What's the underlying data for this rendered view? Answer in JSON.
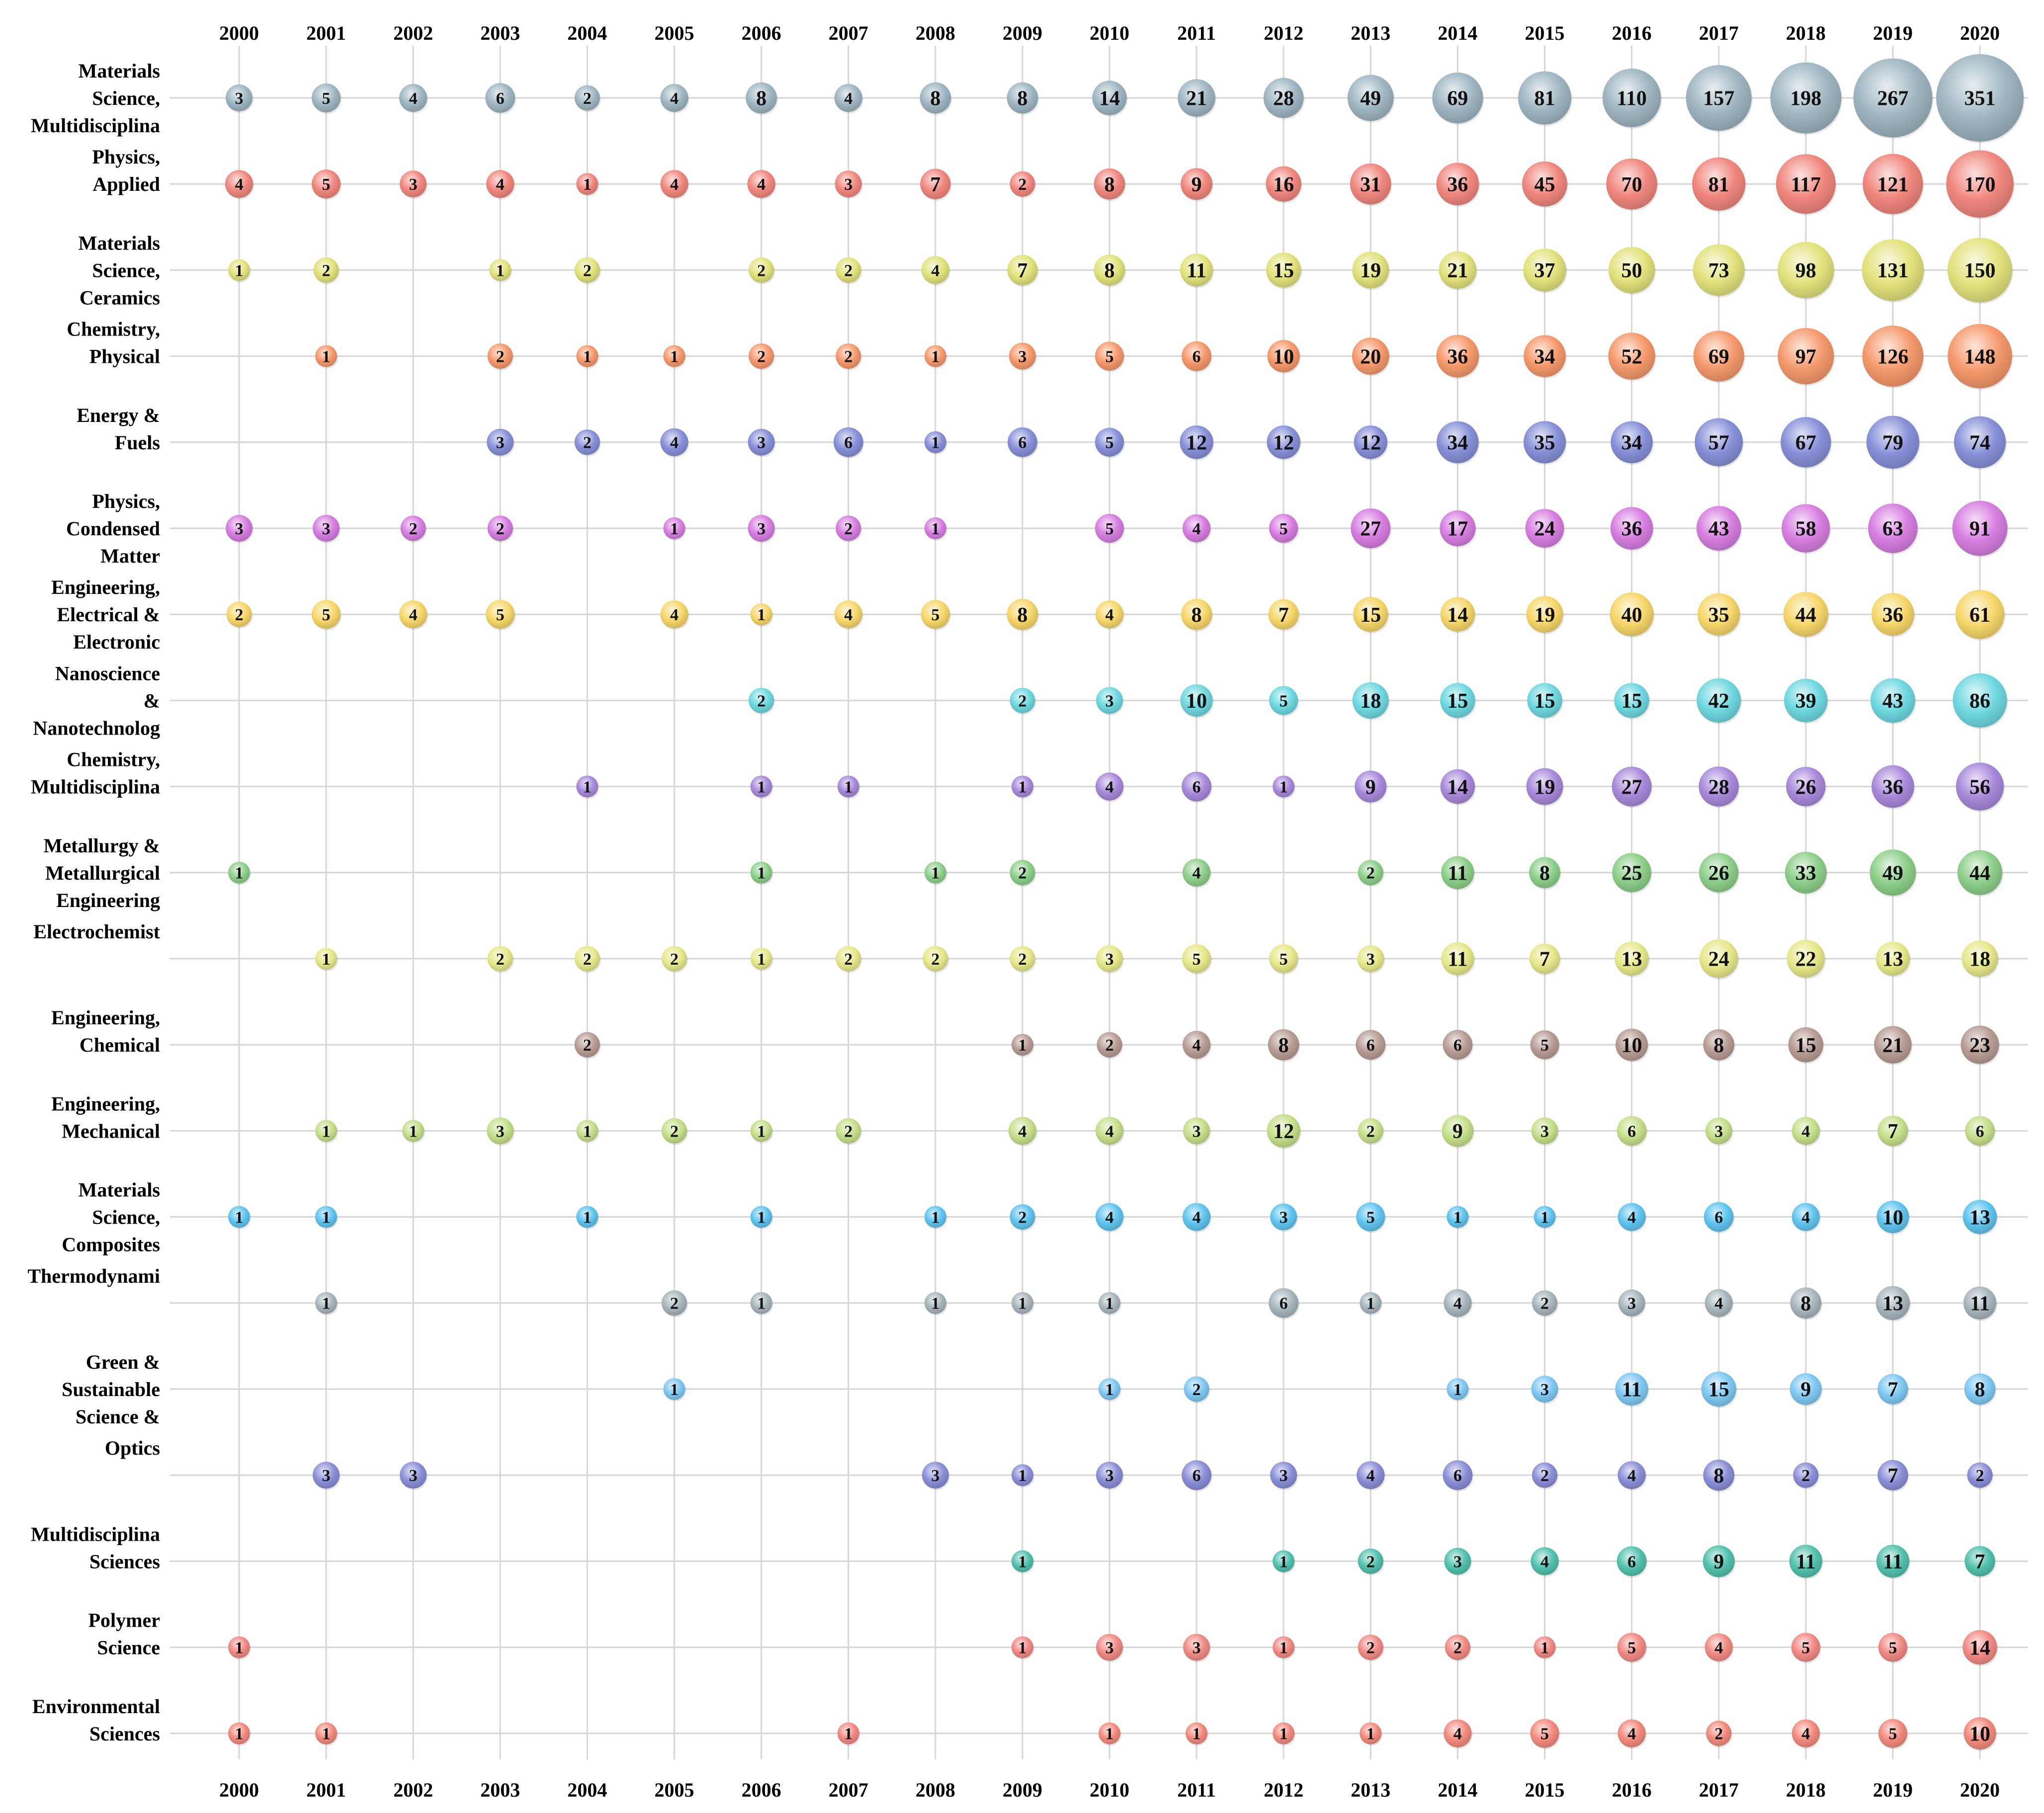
{
  "chart_data": {
    "type": "bubble-matrix",
    "years": [
      "2000",
      "2001",
      "2002",
      "2003",
      "2004",
      "2005",
      "2006",
      "2007",
      "2008",
      "2009",
      "2010",
      "2011",
      "2012",
      "2013",
      "2014",
      "2015",
      "2016",
      "2017",
      "2018",
      "2019",
      "2020"
    ],
    "rows": [
      {
        "label": [
          "Materials",
          "Science,",
          "Multidisciplina"
        ],
        "color": "#9fb6c2",
        "values": [
          3,
          5,
          4,
          6,
          2,
          4,
          8,
          4,
          8,
          8,
          14,
          21,
          28,
          49,
          69,
          81,
          110,
          157,
          198,
          267,
          351
        ]
      },
      {
        "label": [
          "Physics,",
          "Applied"
        ],
        "color": "#f0877e",
        "values": [
          4,
          5,
          3,
          4,
          1,
          4,
          4,
          3,
          7,
          2,
          8,
          9,
          16,
          31,
          36,
          45,
          70,
          81,
          117,
          121,
          170
        ]
      },
      {
        "label": [
          "Materials",
          "Science,",
          "Ceramics"
        ],
        "color": "#e2e27c",
        "values": [
          1,
          2,
          null,
          1,
          2,
          null,
          2,
          2,
          4,
          7,
          8,
          11,
          15,
          19,
          21,
          37,
          50,
          73,
          98,
          131,
          150
        ]
      },
      {
        "label": [
          "Chemistry,",
          "Physical"
        ],
        "color": "#f5996c",
        "values": [
          null,
          1,
          null,
          2,
          1,
          1,
          2,
          2,
          1,
          3,
          5,
          6,
          10,
          20,
          36,
          34,
          52,
          69,
          97,
          126,
          148
        ]
      },
      {
        "label": [
          "Energy &",
          "Fuels"
        ],
        "color": "#8790d8",
        "values": [
          null,
          null,
          null,
          3,
          2,
          4,
          3,
          6,
          1,
          6,
          5,
          12,
          12,
          12,
          34,
          35,
          34,
          57,
          67,
          79,
          74
        ]
      },
      {
        "label": [
          "Physics,",
          "Condensed",
          "Matter"
        ],
        "color": "#d67ee0",
        "values": [
          3,
          3,
          2,
          2,
          null,
          1,
          3,
          2,
          1,
          null,
          5,
          4,
          5,
          27,
          17,
          24,
          36,
          43,
          58,
          63,
          91
        ]
      },
      {
        "label": [
          "Engineering,",
          "Electrical &",
          "Electronic"
        ],
        "color": "#f6d76a",
        "values": [
          2,
          5,
          4,
          5,
          null,
          4,
          1,
          4,
          5,
          8,
          4,
          8,
          7,
          15,
          14,
          19,
          40,
          35,
          44,
          36,
          61
        ]
      },
      {
        "label": [
          "Nanoscience",
          "&",
          "Nanotechnolog"
        ],
        "color": "#6fd8e0",
        "values": [
          null,
          null,
          null,
          null,
          null,
          null,
          2,
          null,
          null,
          2,
          3,
          10,
          5,
          18,
          15,
          15,
          15,
          42,
          39,
          43,
          86
        ]
      },
      {
        "label": [
          "Chemistry,",
          "Multidisciplina"
        ],
        "color": "#a889da",
        "values": [
          null,
          null,
          null,
          null,
          1,
          null,
          1,
          1,
          null,
          1,
          4,
          6,
          1,
          9,
          14,
          19,
          27,
          28,
          26,
          36,
          56
        ]
      },
      {
        "label": [
          "Metallurgy &",
          "Metallurgical",
          "Engineering"
        ],
        "color": "#8dcf8a",
        "values": [
          1,
          null,
          null,
          null,
          null,
          null,
          1,
          null,
          1,
          2,
          null,
          4,
          null,
          2,
          11,
          8,
          25,
          26,
          33,
          49,
          44
        ]
      },
      {
        "label": [
          "Electrochemist"
        ],
        "color": "#e6e88a",
        "values": [
          null,
          1,
          null,
          2,
          2,
          2,
          1,
          2,
          2,
          2,
          3,
          5,
          5,
          3,
          11,
          7,
          13,
          24,
          22,
          13,
          18
        ]
      },
      {
        "label": [
          "Engineering,",
          "Chemical"
        ],
        "color": "#b79c94",
        "values": [
          null,
          null,
          null,
          null,
          2,
          null,
          null,
          null,
          null,
          1,
          2,
          4,
          8,
          6,
          6,
          5,
          10,
          8,
          15,
          21,
          23
        ]
      },
      {
        "label": [
          "Engineering,",
          "Mechanical"
        ],
        "color": "#c5df8a",
        "values": [
          null,
          1,
          1,
          3,
          1,
          2,
          1,
          2,
          null,
          4,
          4,
          3,
          12,
          2,
          9,
          3,
          6,
          3,
          4,
          7,
          6
        ]
      },
      {
        "label": [
          "Materials",
          "Science,",
          "Composites"
        ],
        "color": "#5fc4ee",
        "values": [
          1,
          1,
          null,
          null,
          1,
          null,
          1,
          null,
          1,
          2,
          4,
          4,
          3,
          5,
          1,
          1,
          4,
          6,
          4,
          10,
          13
        ]
      },
      {
        "label": [
          "Thermodynami"
        ],
        "color": "#a7b5bc",
        "values": [
          null,
          1,
          null,
          null,
          null,
          2,
          1,
          null,
          1,
          1,
          1,
          null,
          6,
          1,
          4,
          2,
          3,
          4,
          8,
          13,
          11
        ]
      },
      {
        "label": [
          "Green &",
          "Sustainable",
          "Science &"
        ],
        "color": "#7fc8f2",
        "values": [
          null,
          null,
          null,
          null,
          null,
          1,
          null,
          null,
          null,
          null,
          1,
          2,
          null,
          null,
          1,
          3,
          11,
          15,
          9,
          7,
          8
        ]
      },
      {
        "label": [
          "Optics"
        ],
        "color": "#8a8ed6",
        "values": [
          null,
          3,
          3,
          null,
          null,
          null,
          null,
          null,
          3,
          1,
          3,
          6,
          3,
          4,
          6,
          2,
          4,
          8,
          2,
          7,
          2
        ]
      },
      {
        "label": [
          "Multidisciplina",
          "Sciences"
        ],
        "color": "#52c1ad",
        "values": [
          null,
          null,
          null,
          null,
          null,
          null,
          null,
          null,
          null,
          1,
          null,
          null,
          1,
          2,
          3,
          4,
          6,
          9,
          11,
          11,
          7
        ]
      },
      {
        "label": [
          "Polymer",
          "Science"
        ],
        "color": "#f08a84",
        "values": [
          1,
          null,
          null,
          null,
          null,
          null,
          null,
          null,
          null,
          1,
          3,
          3,
          1,
          2,
          2,
          1,
          5,
          4,
          5,
          5,
          14
        ]
      },
      {
        "label": [
          "Environmental",
          "Sciences"
        ],
        "color": "#f28a7e",
        "values": [
          1,
          1,
          null,
          null,
          null,
          null,
          null,
          1,
          null,
          null,
          1,
          1,
          1,
          1,
          4,
          5,
          4,
          2,
          4,
          5,
          10
        ]
      }
    ]
  }
}
